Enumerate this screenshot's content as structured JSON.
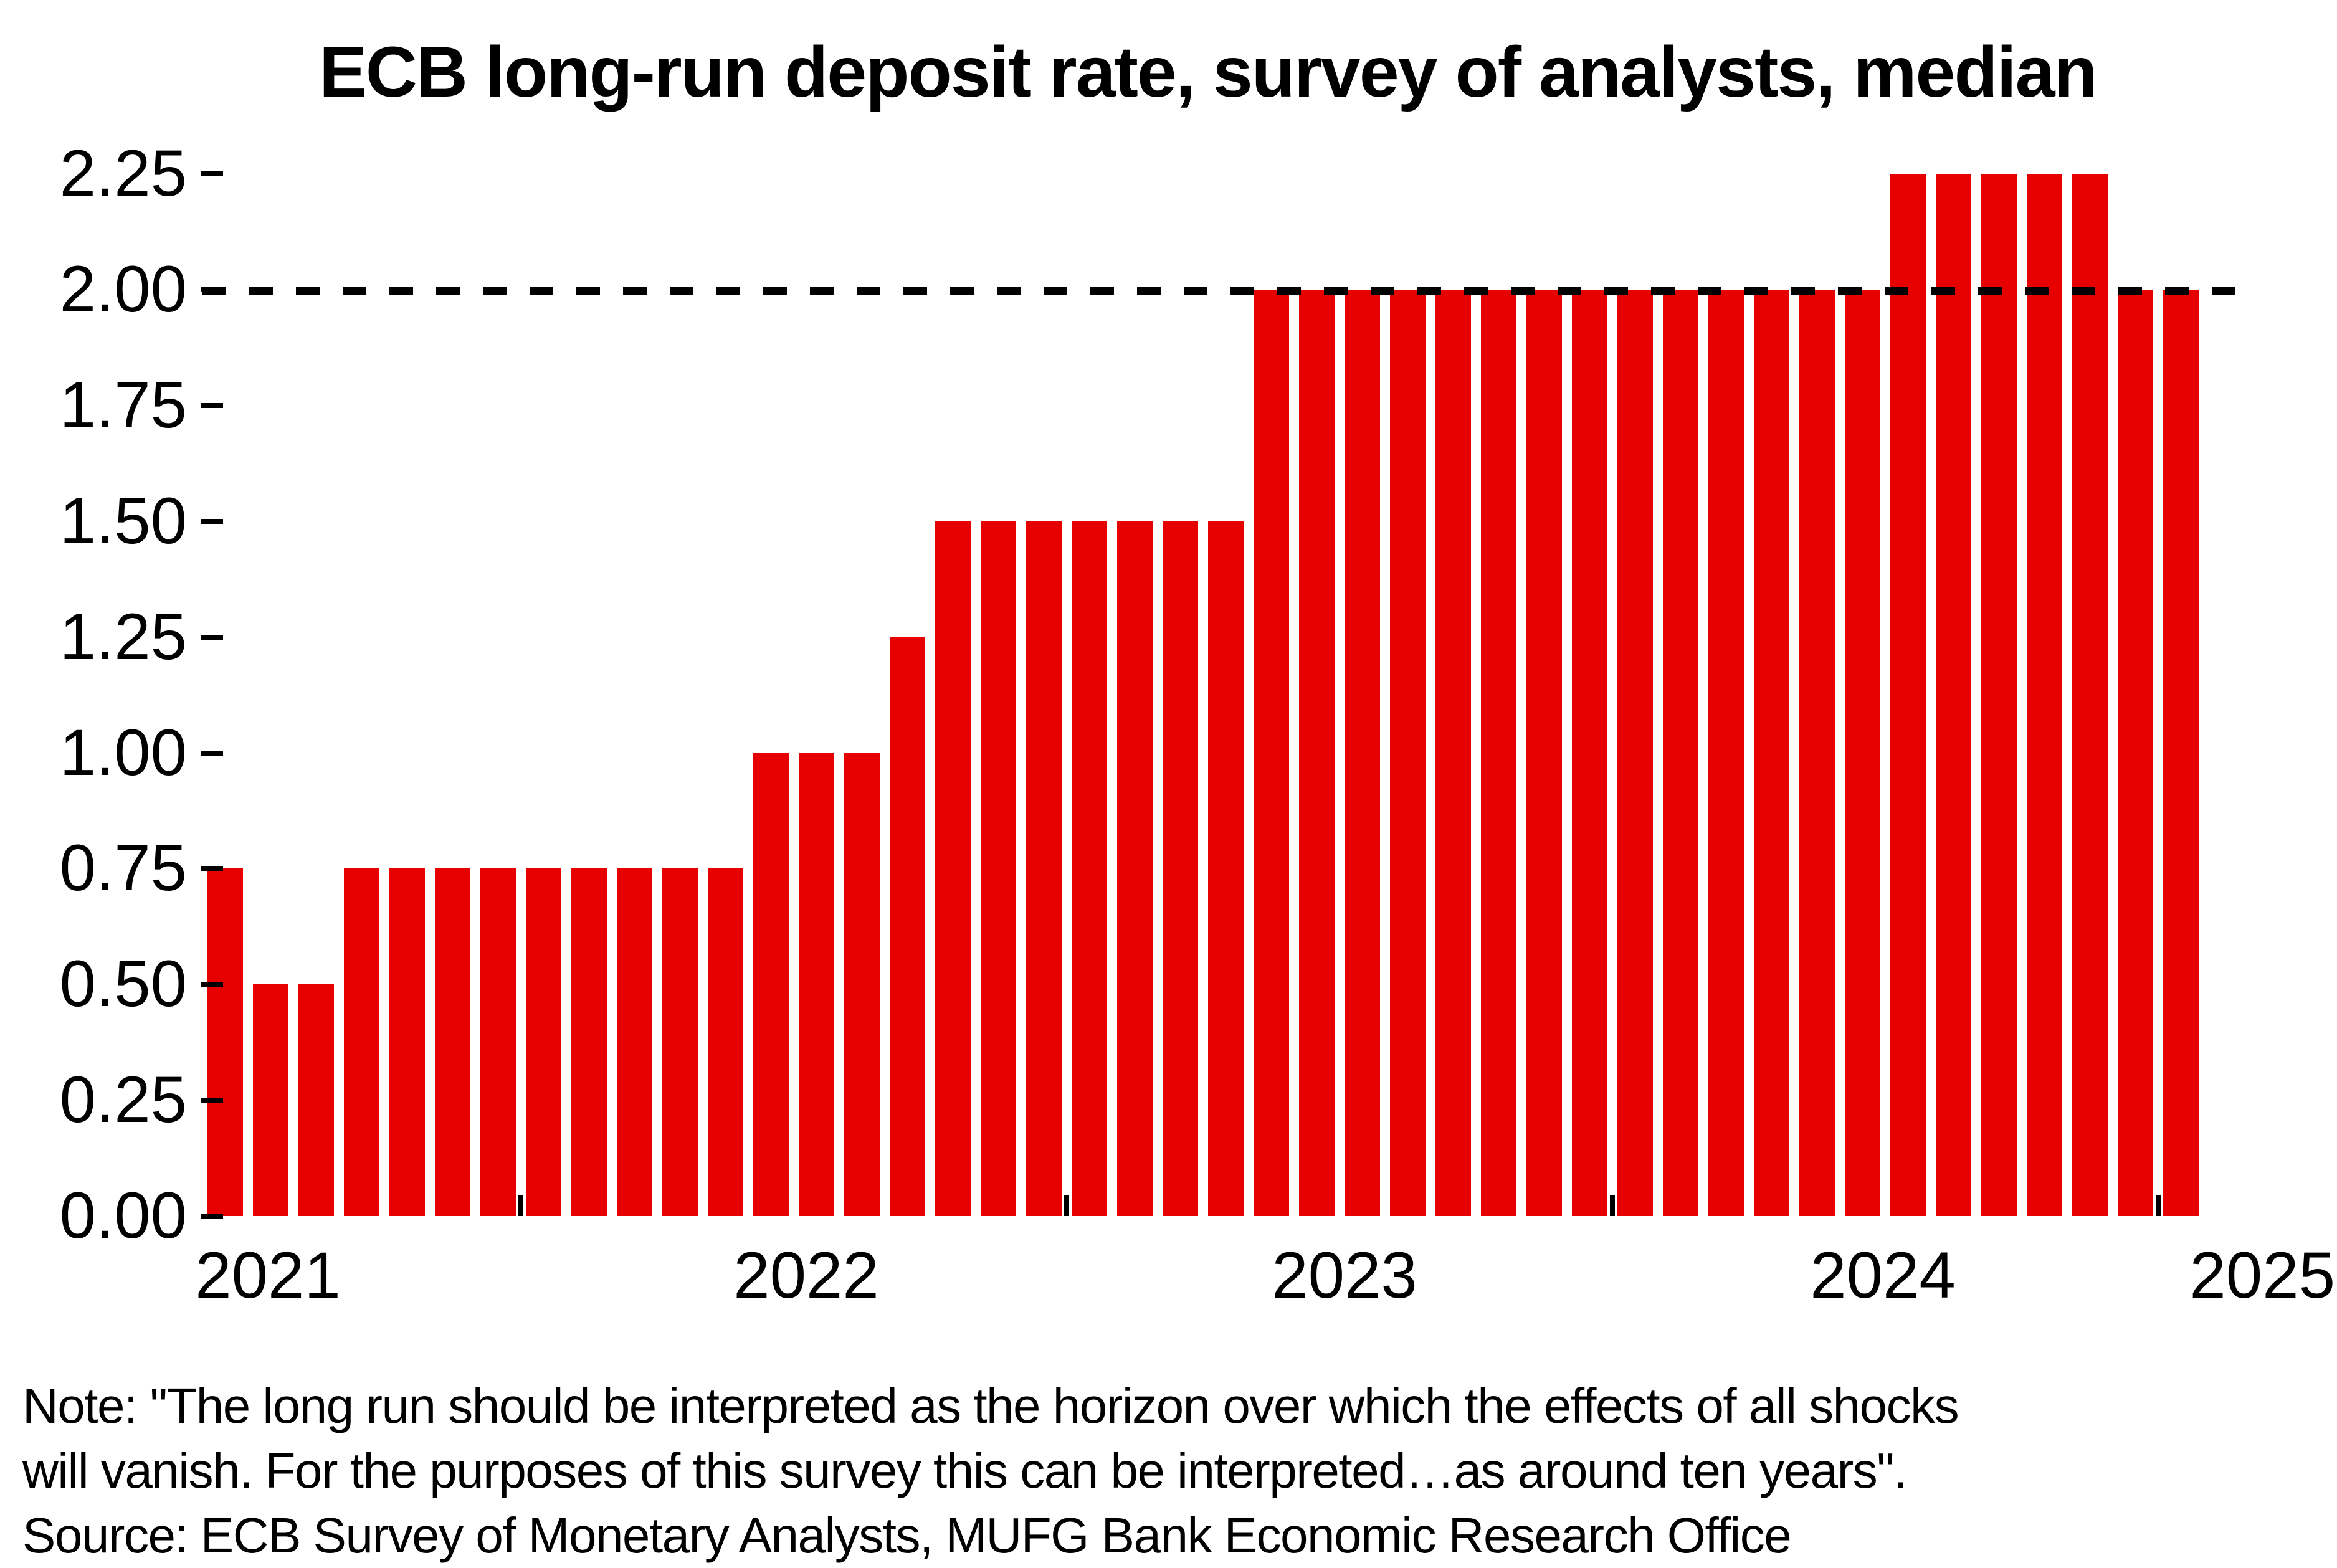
{
  "title": "ECB long-run deposit rate, survey of analysts, median",
  "colors": {
    "bar": "#E60000",
    "dashed_line": "#000000",
    "text": "#000000",
    "background": "#FFFFFF"
  },
  "y_axis": {
    "tick_labels": [
      "0.00",
      "0.25",
      "0.50",
      "0.75",
      "1.00",
      "1.25",
      "1.50",
      "1.75",
      "2.00",
      "2.25"
    ]
  },
  "x_axis": {
    "year_labels": [
      "2021",
      "2022",
      "2023",
      "2024",
      "2025"
    ]
  },
  "chart_data": {
    "type": "bar",
    "title": "ECB long-run deposit rate, survey of analysts, median",
    "xlabel": "",
    "ylabel": "",
    "ylim": [
      0,
      2.25
    ],
    "grid": false,
    "legend": false,
    "bar_color": "#E60000",
    "reference_line": {
      "value": 2.0,
      "style": "dashed",
      "color": "#000000"
    },
    "x_tick_years": [
      "2021",
      "2022",
      "2023",
      "2024",
      "2025"
    ],
    "values": [
      0.75,
      0.5,
      0.5,
      0.75,
      0.75,
      0.75,
      0.75,
      0.75,
      0.75,
      0.75,
      0.75,
      0.75,
      1.0,
      1.0,
      1.0,
      1.25,
      1.5,
      1.5,
      1.5,
      1.5,
      1.5,
      1.5,
      1.5,
      2.0,
      2.0,
      2.0,
      2.0,
      2.0,
      2.0,
      2.0,
      2.0,
      2.0,
      2.0,
      2.0,
      2.0,
      2.0,
      2.0,
      2.25,
      2.25,
      2.25,
      2.25,
      2.25,
      2.0,
      2.0
    ]
  },
  "note_line1": "Note: \"The long run should be interpreted as the horizon over which the effects of all shocks",
  "note_line2": "will vanish. For the purposes of this survey this can be interpreted…as around ten years\".",
  "source_line": "Source: ECB Survey of Monetary Analysts, MUFG Bank Economic Research Office"
}
